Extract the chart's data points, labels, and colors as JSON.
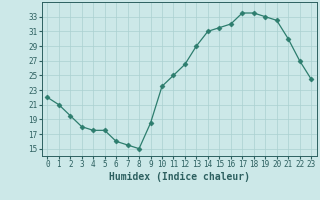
{
  "x": [
    0,
    1,
    2,
    3,
    4,
    5,
    6,
    7,
    8,
    9,
    10,
    11,
    12,
    13,
    14,
    15,
    16,
    17,
    18,
    19,
    20,
    21,
    22,
    23
  ],
  "y": [
    22,
    21,
    19.5,
    18,
    17.5,
    17.5,
    16,
    15.5,
    15,
    18.5,
    23.5,
    25,
    26.5,
    29,
    31,
    31.5,
    32,
    33.5,
    33.5,
    33,
    32.5,
    30,
    27,
    24.5
  ],
  "line_color": "#2d7d6e",
  "marker": "D",
  "marker_size": 2.5,
  "bg_color": "#cce8e8",
  "grid_color": "#aad0d0",
  "xlabel": "Humidex (Indice chaleur)",
  "ylim": [
    14,
    35
  ],
  "yticks": [
    15,
    17,
    19,
    21,
    23,
    25,
    27,
    29,
    31,
    33
  ],
  "xlim": [
    -0.5,
    23.5
  ],
  "xticks": [
    0,
    1,
    2,
    3,
    4,
    5,
    6,
    7,
    8,
    9,
    10,
    11,
    12,
    13,
    14,
    15,
    16,
    17,
    18,
    19,
    20,
    21,
    22,
    23
  ],
  "font_color": "#2d6060",
  "tick_fontsize": 5.5,
  "xlabel_fontsize": 7.0
}
